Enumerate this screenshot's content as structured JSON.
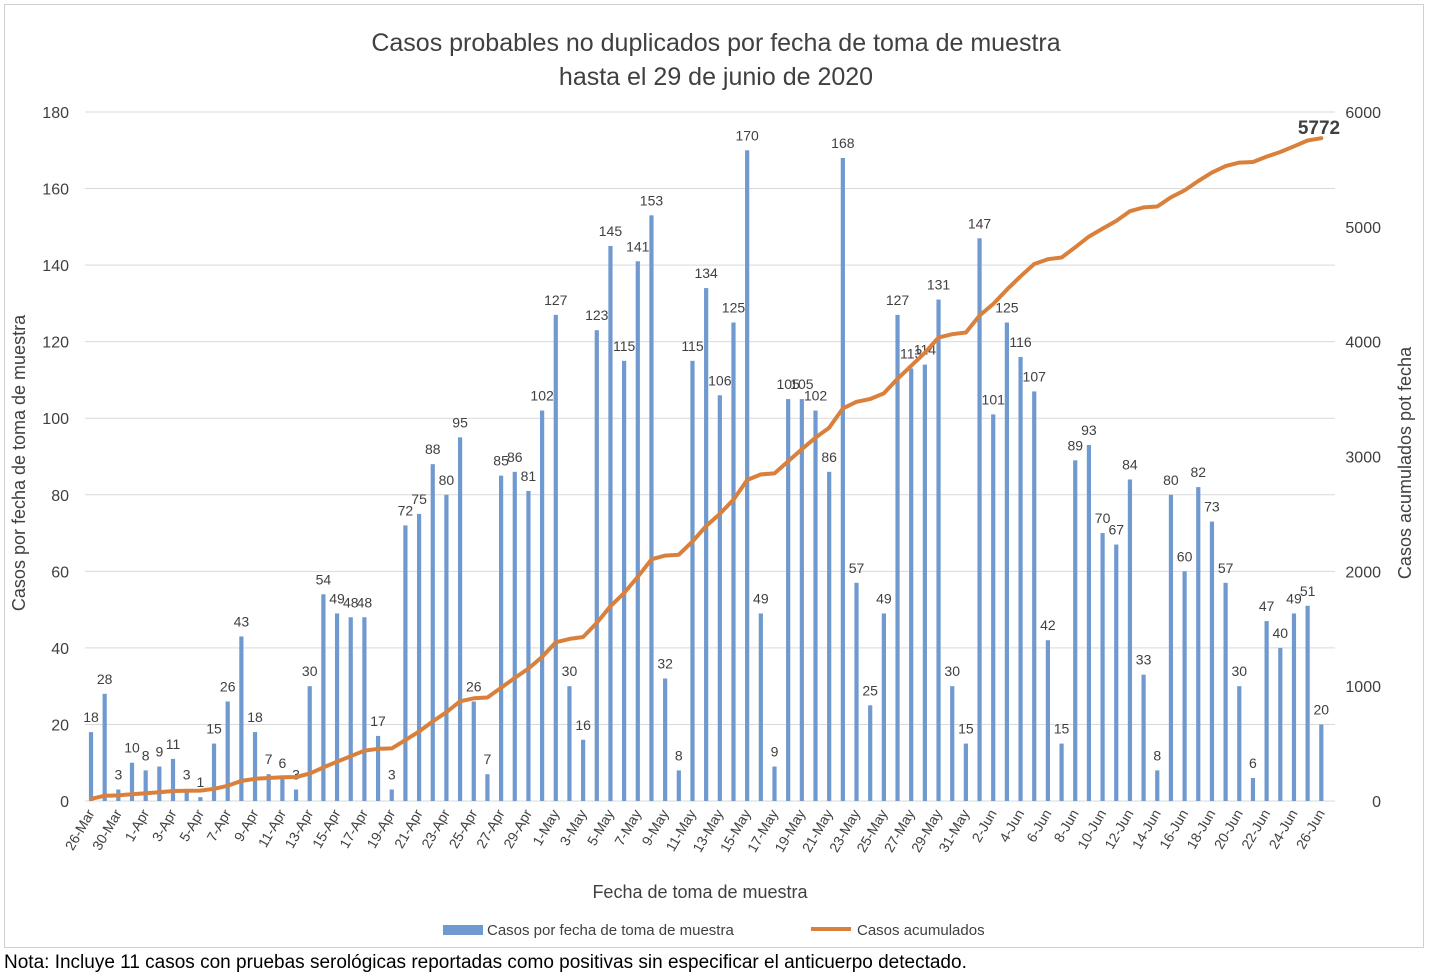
{
  "chart_data": {
    "type": "bar",
    "title_line1": "Casos probables no duplicados por fecha de toma de muestra",
    "title_line2": "hasta el 29 de junio de 2020",
    "xlabel": "Fecha de toma de muestra",
    "ylabel_left": "Casos por fecha de toma de muestra",
    "ylabel_right": "Casos acumulados pot fecha",
    "ylim_left": [
      0,
      180
    ],
    "yticks_left": [
      "0",
      "20",
      "40",
      "60",
      "80",
      "100",
      "120",
      "140",
      "160",
      "180"
    ],
    "ylim_right": [
      0,
      6000
    ],
    "yticks_right": [
      "0",
      "1000",
      "2000",
      "3000",
      "4000",
      "5000",
      "6000"
    ],
    "grid": true,
    "legend_position": "bottom",
    "colors": {
      "bars": "#7099d0",
      "line": "#d9803c",
      "grid": "#d9d9d9",
      "text": "#404040"
    },
    "x_tick_labels": [
      "26-Mar",
      "30-Mar",
      "1-Apr",
      "3-Apr",
      "5-Apr",
      "7-Apr",
      "9-Apr",
      "11-Apr",
      "13-Apr",
      "15-Apr",
      "17-Apr",
      "19-Apr",
      "21-Apr",
      "23-Apr",
      "25-Apr",
      "27-Apr",
      "29-Apr",
      "1-May",
      "3-May",
      "5-May",
      "7-May",
      "9-May",
      "11-May",
      "13-May",
      "15-May",
      "17-May",
      "19-May",
      "21-May",
      "23-May",
      "25-May",
      "27-May",
      "29-May",
      "31-May",
      "2-Jun",
      "4-Jun",
      "6-Jun",
      "8-Jun",
      "10-Jun",
      "12-Jun",
      "14-Jun",
      "16-Jun",
      "18-Jun",
      "20-Jun",
      "22-Jun",
      "24-Jun",
      "26-Jun"
    ],
    "values": [
      18,
      28,
      3,
      10,
      8,
      9,
      11,
      3,
      1,
      15,
      26,
      43,
      18,
      7,
      6,
      3,
      30,
      54,
      49,
      48,
      48,
      17,
      3,
      72,
      75,
      88,
      80,
      95,
      26,
      7,
      85,
      86,
      81,
      102,
      127,
      30,
      16,
      123,
      145,
      115,
      141,
      153,
      32,
      8,
      115,
      134,
      106,
      125,
      170,
      49,
      9,
      105,
      105,
      102,
      86,
      168,
      57,
      25,
      49,
      127,
      113,
      114,
      131,
      30,
      15,
      147,
      101,
      125,
      116,
      107,
      42,
      15,
      89,
      93,
      70,
      67,
      84,
      33,
      8,
      80,
      60,
      82,
      73,
      57,
      30,
      6,
      47,
      40,
      49,
      51,
      20
    ],
    "series": [
      {
        "name": "Casos por fecha de toma de muestra",
        "type": "bar"
      },
      {
        "name": "Casos acumulados",
        "type": "line"
      }
    ],
    "final_cumulative_label": "5772"
  },
  "note": "Nota: Incluye 11 casos con pruebas serológicas reportadas como positivas sin especificar el anticuerpo detectado."
}
